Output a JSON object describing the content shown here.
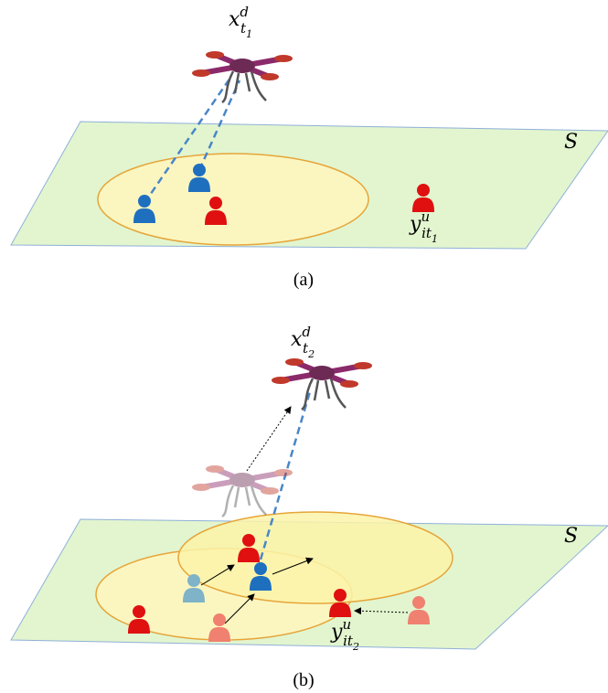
{
  "panels": [
    {
      "drone_label": {
        "base": "x",
        "sup": "d",
        "sub": "t",
        "sub_index": "1"
      },
      "plane_label": "S",
      "user_label": {
        "base": "y",
        "sup": "u",
        "sub": "it",
        "sub_index": "1"
      },
      "caption": "(a)"
    },
    {
      "drone_label": {
        "base": "x",
        "sup": "d",
        "sub": "t",
        "sub_index": "2"
      },
      "plane_label": "S",
      "user_label": {
        "base": "y",
        "sup": "u",
        "sub": "it",
        "sub_index": "2"
      },
      "caption": "(b)"
    }
  ]
}
